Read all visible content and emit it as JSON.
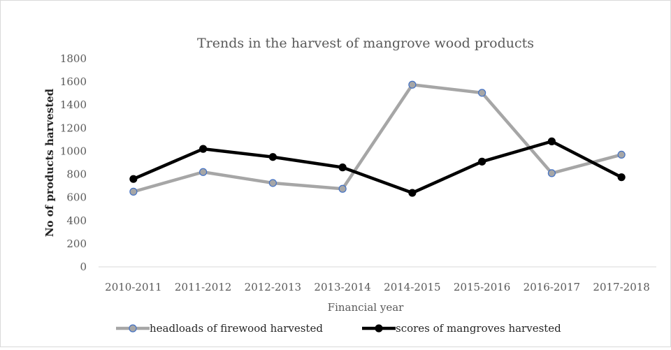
{
  "chart_data": {
    "type": "line",
    "title": "Trends in the harvest of mangrove wood products",
    "xlabel": "Financial year",
    "ylabel": "No of products harvested",
    "categories": [
      "2010-2011",
      "2011-2012",
      "2012-2013",
      "2013-2014",
      "2014-2015",
      "2015-2016",
      "2016-2017",
      "2017-2018"
    ],
    "ylim": [
      0,
      1800
    ],
    "yticks": [
      0,
      200,
      400,
      600,
      800,
      1000,
      1200,
      1400,
      1600,
      1800
    ],
    "grid": false,
    "legend_position": "bottom",
    "series": [
      {
        "name": "headloads of firewood harvested",
        "values": [
          650,
          820,
          725,
          675,
          1575,
          1505,
          810,
          970
        ],
        "line_color": "#a6a6a6",
        "marker_fill": "#a6a6a6",
        "marker_edge": "#4472c4"
      },
      {
        "name": "scores of mangroves harvested",
        "values": [
          760,
          1020,
          950,
          860,
          640,
          910,
          1085,
          775
        ],
        "line_color": "#000000",
        "marker_fill": "#000000",
        "marker_edge": "#000000"
      }
    ]
  }
}
